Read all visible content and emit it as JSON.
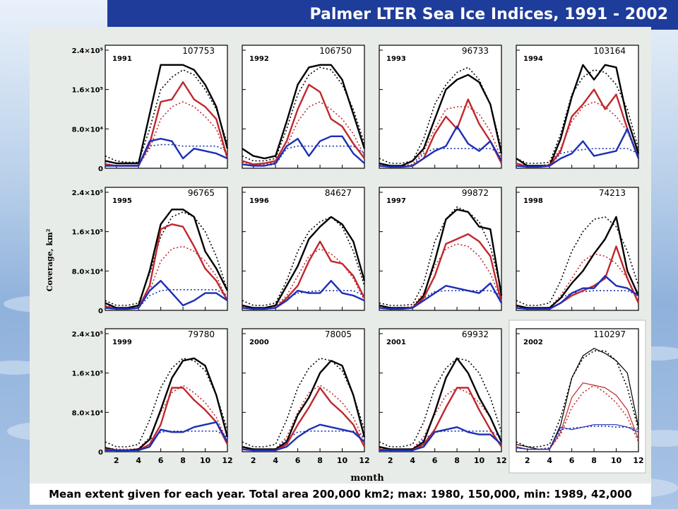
{
  "header": {
    "title": "Palmer LTER Sea Ice Indices, 1991 - 2002"
  },
  "footer": {
    "caption": "Mean extent given for each year. Total area 200,000 km2; max: 1980, 150,000, min: 1989, 42,000"
  },
  "colors": {
    "title_bar": "#1e3c9a",
    "total": "#000000",
    "red": "#c0282d",
    "blue": "#1c2fb4"
  },
  "chart_data": {
    "type": "line",
    "ylabel": "Coverage, km²",
    "xlabel": "month",
    "x": [
      1,
      2,
      3,
      4,
      5,
      6,
      7,
      8,
      9,
      10,
      11,
      12
    ],
    "xticks": [
      "2",
      "4",
      "6",
      "8",
      "10",
      "12"
    ],
    "yticks": [
      {
        "value": 0,
        "label": "0"
      },
      {
        "value": 80000,
        "label": "8.0×10⁴"
      },
      {
        "value": 160000,
        "label": "1.6×10⁵"
      },
      {
        "value": 240000,
        "label": "2.4×10⁵"
      }
    ],
    "ylim": [
      0,
      250000
    ],
    "xlim": [
      1,
      12
    ],
    "grid": false,
    "panels": [
      {
        "year": "1991",
        "mean": "107753",
        "black": [
          15000,
          10000,
          10000,
          10000,
          110000,
          210000,
          210000,
          210000,
          200000,
          170000,
          125000,
          40000
        ],
        "black_mean": [
          25000,
          15000,
          12000,
          12000,
          80000,
          160000,
          185000,
          200000,
          190000,
          160000,
          120000,
          50000
        ],
        "red": [
          8000,
          5000,
          5000,
          5000,
          50000,
          135000,
          140000,
          175000,
          140000,
          125000,
          100000,
          20000
        ],
        "red_mean": [
          10000,
          5000,
          5000,
          6000,
          40000,
          100000,
          125000,
          135000,
          125000,
          105000,
          80000,
          20000
        ],
        "blue": [
          5000,
          5000,
          5000,
          5000,
          55000,
          60000,
          55000,
          20000,
          40000,
          35000,
          30000,
          20000
        ],
        "blue_mean": [
          6000,
          5000,
          5000,
          5000,
          45000,
          48000,
          48000,
          45000,
          45000,
          45000,
          45000,
          35000
        ]
      },
      {
        "year": "1992",
        "mean": "106750",
        "black": [
          40000,
          25000,
          20000,
          25000,
          95000,
          170000,
          205000,
          210000,
          210000,
          180000,
          110000,
          40000
        ],
        "black_mean": [
          25000,
          15000,
          15000,
          20000,
          80000,
          150000,
          190000,
          205000,
          200000,
          170000,
          120000,
          50000
        ],
        "red": [
          15000,
          8000,
          10000,
          15000,
          55000,
          120000,
          170000,
          155000,
          100000,
          85000,
          50000,
          20000
        ],
        "red_mean": [
          12000,
          7000,
          8000,
          12000,
          45000,
          95000,
          125000,
          135000,
          120000,
          100000,
          70000,
          25000
        ],
        "blue": [
          8000,
          5000,
          5000,
          10000,
          45000,
          60000,
          25000,
          55000,
          65000,
          65000,
          30000,
          10000
        ],
        "blue_mean": [
          8000,
          5000,
          5000,
          8000,
          40000,
          45000,
          45000,
          45000,
          45000,
          45000,
          45000,
          30000
        ]
      },
      {
        "year": "1993",
        "mean": "96733",
        "black": [
          10000,
          5000,
          5000,
          15000,
          40000,
          100000,
          160000,
          180000,
          190000,
          175000,
          130000,
          30000
        ],
        "black_mean": [
          20000,
          10000,
          10000,
          15000,
          60000,
          130000,
          170000,
          195000,
          205000,
          180000,
          130000,
          40000
        ],
        "red": [
          5000,
          3000,
          3000,
          5000,
          20000,
          70000,
          105000,
          80000,
          140000,
          90000,
          55000,
          10000
        ],
        "red_mean": [
          8000,
          5000,
          5000,
          8000,
          35000,
          80000,
          120000,
          125000,
          125000,
          110000,
          75000,
          20000
        ],
        "blue": [
          5000,
          3000,
          3000,
          5000,
          20000,
          35000,
          45000,
          85000,
          50000,
          35000,
          55000,
          15000
        ],
        "blue_mean": [
          5000,
          4000,
          4000,
          5000,
          30000,
          40000,
          40000,
          40000,
          40000,
          40000,
          40000,
          30000
        ]
      },
      {
        "year": "1994",
        "mean": "103164",
        "black": [
          20000,
          5000,
          5000,
          5000,
          60000,
          145000,
          210000,
          180000,
          210000,
          205000,
          100000,
          30000
        ],
        "black_mean": [
          20000,
          10000,
          10000,
          12000,
          70000,
          150000,
          185000,
          200000,
          195000,
          170000,
          120000,
          40000
        ],
        "red": [
          10000,
          3000,
          3000,
          5000,
          35000,
          105000,
          130000,
          160000,
          120000,
          150000,
          80000,
          20000
        ],
        "red_mean": [
          10000,
          5000,
          5000,
          8000,
          40000,
          95000,
          125000,
          135000,
          125000,
          105000,
          75000,
          20000
        ],
        "blue": [
          5000,
          3000,
          3000,
          5000,
          20000,
          30000,
          55000,
          25000,
          30000,
          35000,
          80000,
          20000
        ],
        "blue_mean": [
          5000,
          4000,
          4000,
          5000,
          30000,
          35000,
          38000,
          40000,
          40000,
          40000,
          40000,
          30000
        ]
      },
      {
        "year": "1995",
        "mean": "96765",
        "black": [
          15000,
          5000,
          5000,
          10000,
          80000,
          175000,
          205000,
          205000,
          190000,
          120000,
          85000,
          40000
        ],
        "black_mean": [
          20000,
          10000,
          10000,
          15000,
          75000,
          150000,
          190000,
          200000,
          190000,
          160000,
          110000,
          40000
        ],
        "red": [
          8000,
          3000,
          3000,
          5000,
          50000,
          165000,
          175000,
          170000,
          130000,
          85000,
          60000,
          20000
        ],
        "red_mean": [
          10000,
          5000,
          5000,
          8000,
          40000,
          100000,
          125000,
          130000,
          120000,
          100000,
          70000,
          20000
        ],
        "blue": [
          5000,
          3000,
          3000,
          5000,
          40000,
          60000,
          35000,
          10000,
          20000,
          35000,
          35000,
          20000
        ],
        "blue_mean": [
          5000,
          4000,
          4000,
          5000,
          30000,
          40000,
          42000,
          42000,
          42000,
          42000,
          42000,
          30000
        ]
      },
      {
        "year": "1996",
        "mean": "84627",
        "black": [
          10000,
          5000,
          5000,
          10000,
          50000,
          90000,
          145000,
          170000,
          190000,
          175000,
          140000,
          60000
        ],
        "black_mean": [
          20000,
          10000,
          10000,
          15000,
          60000,
          120000,
          160000,
          180000,
          190000,
          170000,
          120000,
          50000
        ],
        "red": [
          5000,
          3000,
          3000,
          5000,
          25000,
          50000,
          100000,
          140000,
          100000,
          95000,
          70000,
          25000
        ],
        "red_mean": [
          8000,
          5000,
          5000,
          8000,
          30000,
          70000,
          110000,
          125000,
          115000,
          95000,
          65000,
          20000
        ],
        "blue": [
          5000,
          3000,
          3000,
          5000,
          20000,
          40000,
          35000,
          35000,
          60000,
          35000,
          30000,
          20000
        ],
        "blue_mean": [
          5000,
          4000,
          4000,
          5000,
          25000,
          35000,
          38000,
          40000,
          40000,
          40000,
          40000,
          30000
        ]
      },
      {
        "year": "1997",
        "mean": "99872",
        "black": [
          10000,
          5000,
          5000,
          5000,
          30000,
          100000,
          185000,
          205000,
          200000,
          170000,
          165000,
          30000
        ],
        "black_mean": [
          15000,
          10000,
          10000,
          12000,
          55000,
          140000,
          185000,
          210000,
          200000,
          180000,
          130000,
          40000
        ],
        "red": [
          5000,
          3000,
          3000,
          5000,
          25000,
          70000,
          135000,
          145000,
          155000,
          140000,
          110000,
          15000
        ],
        "red_mean": [
          8000,
          5000,
          5000,
          8000,
          35000,
          90000,
          125000,
          135000,
          130000,
          110000,
          75000,
          20000
        ],
        "blue": [
          5000,
          3000,
          3000,
          5000,
          20000,
          35000,
          50000,
          45000,
          40000,
          35000,
          55000,
          15000
        ],
        "blue_mean": [
          5000,
          4000,
          4000,
          5000,
          25000,
          38000,
          40000,
          40000,
          40000,
          40000,
          40000,
          30000
        ]
      },
      {
        "year": "1998",
        "mean": "74213",
        "black": [
          10000,
          5000,
          5000,
          5000,
          25000,
          55000,
          80000,
          115000,
          145000,
          190000,
          80000,
          30000
        ],
        "black_mean": [
          20000,
          10000,
          10000,
          15000,
          60000,
          120000,
          160000,
          185000,
          190000,
          170000,
          120000,
          50000
        ],
        "red": [
          5000,
          3000,
          3000,
          3000,
          15000,
          30000,
          40000,
          50000,
          65000,
          130000,
          65000,
          15000
        ],
        "red_mean": [
          8000,
          5000,
          5000,
          6000,
          30000,
          65000,
          100000,
          115000,
          110000,
          95000,
          65000,
          20000
        ],
        "blue": [
          5000,
          3000,
          3000,
          3000,
          15000,
          35000,
          45000,
          45000,
          70000,
          50000,
          45000,
          30000
        ],
        "blue_mean": [
          5000,
          4000,
          4000,
          5000,
          25000,
          35000,
          38000,
          40000,
          40000,
          40000,
          40000,
          30000
        ]
      },
      {
        "year": "1999",
        "mean": "79780",
        "black": [
          8000,
          3000,
          3000,
          5000,
          25000,
          85000,
          150000,
          185000,
          190000,
          175000,
          115000,
          30000
        ],
        "black_mean": [
          20000,
          10000,
          10000,
          15000,
          65000,
          130000,
          170000,
          190000,
          185000,
          165000,
          115000,
          45000
        ],
        "red": [
          5000,
          3000,
          3000,
          3000,
          15000,
          55000,
          130000,
          130000,
          105000,
          85000,
          60000,
          15000
        ],
        "red_mean": [
          8000,
          5000,
          5000,
          6000,
          30000,
          80000,
          120000,
          135000,
          120000,
          100000,
          70000,
          20000
        ],
        "blue": [
          3000,
          3000,
          3000,
          3000,
          10000,
          45000,
          40000,
          40000,
          50000,
          55000,
          60000,
          20000
        ],
        "blue_mean": [
          5000,
          4000,
          4000,
          5000,
          25000,
          40000,
          42000,
          42000,
          42000,
          42000,
          42000,
          30000
        ]
      },
      {
        "year": "2000",
        "mean": "78005",
        "black": [
          10000,
          5000,
          5000,
          5000,
          20000,
          75000,
          110000,
          160000,
          185000,
          175000,
          115000,
          30000
        ],
        "black_mean": [
          20000,
          10000,
          10000,
          15000,
          65000,
          130000,
          170000,
          190000,
          185000,
          165000,
          115000,
          45000
        ],
        "red": [
          5000,
          3000,
          3000,
          3000,
          15000,
          55000,
          90000,
          130000,
          100000,
          80000,
          55000,
          10000
        ],
        "red_mean": [
          8000,
          5000,
          5000,
          6000,
          30000,
          80000,
          120000,
          135000,
          120000,
          100000,
          70000,
          20000
        ],
        "blue": [
          5000,
          3000,
          3000,
          3000,
          10000,
          30000,
          45000,
          55000,
          50000,
          45000,
          40000,
          20000
        ],
        "blue_mean": [
          5000,
          4000,
          4000,
          5000,
          25000,
          40000,
          42000,
          42000,
          42000,
          42000,
          42000,
          30000
        ]
      },
      {
        "year": "2001",
        "mean": "69932",
        "black": [
          10000,
          5000,
          5000,
          5000,
          20000,
          80000,
          150000,
          190000,
          160000,
          110000,
          70000,
          20000
        ],
        "black_mean": [
          20000,
          10000,
          10000,
          15000,
          60000,
          130000,
          170000,
          190000,
          185000,
          160000,
          110000,
          40000
        ],
        "red": [
          5000,
          3000,
          3000,
          3000,
          15000,
          45000,
          90000,
          130000,
          130000,
          85000,
          45000,
          10000
        ],
        "red_mean": [
          8000,
          5000,
          5000,
          6000,
          30000,
          75000,
          115000,
          130000,
          120000,
          100000,
          70000,
          20000
        ],
        "blue": [
          3000,
          3000,
          3000,
          3000,
          10000,
          40000,
          45000,
          50000,
          40000,
          35000,
          35000,
          15000
        ],
        "blue_mean": [
          5000,
          4000,
          4000,
          5000,
          25000,
          40000,
          42000,
          42000,
          42000,
          42000,
          42000,
          30000
        ]
      },
      {
        "year": "2002",
        "mean": "110297",
        "black": [
          15000,
          10000,
          5000,
          5000,
          55000,
          150000,
          195000,
          210000,
          200000,
          185000,
          160000,
          50000
        ],
        "black_mean": [
          20000,
          10000,
          10000,
          15000,
          70000,
          150000,
          190000,
          205000,
          205000,
          185000,
          130000,
          45000
        ],
        "red": [
          10000,
          5000,
          5000,
          5000,
          40000,
          110000,
          140000,
          135000,
          130000,
          115000,
          85000,
          25000
        ],
        "red_mean": [
          10000,
          5000,
          5000,
          6000,
          35000,
          90000,
          120000,
          135000,
          120000,
          100000,
          70000,
          20000
        ],
        "blue": [
          8000,
          5000,
          5000,
          5000,
          50000,
          45000,
          50000,
          55000,
          55000,
          55000,
          50000,
          40000
        ],
        "blue_mean": [
          8000,
          5000,
          5000,
          8000,
          45000,
          48000,
          50000,
          52000,
          52000,
          50000,
          50000,
          45000
        ]
      }
    ]
  }
}
